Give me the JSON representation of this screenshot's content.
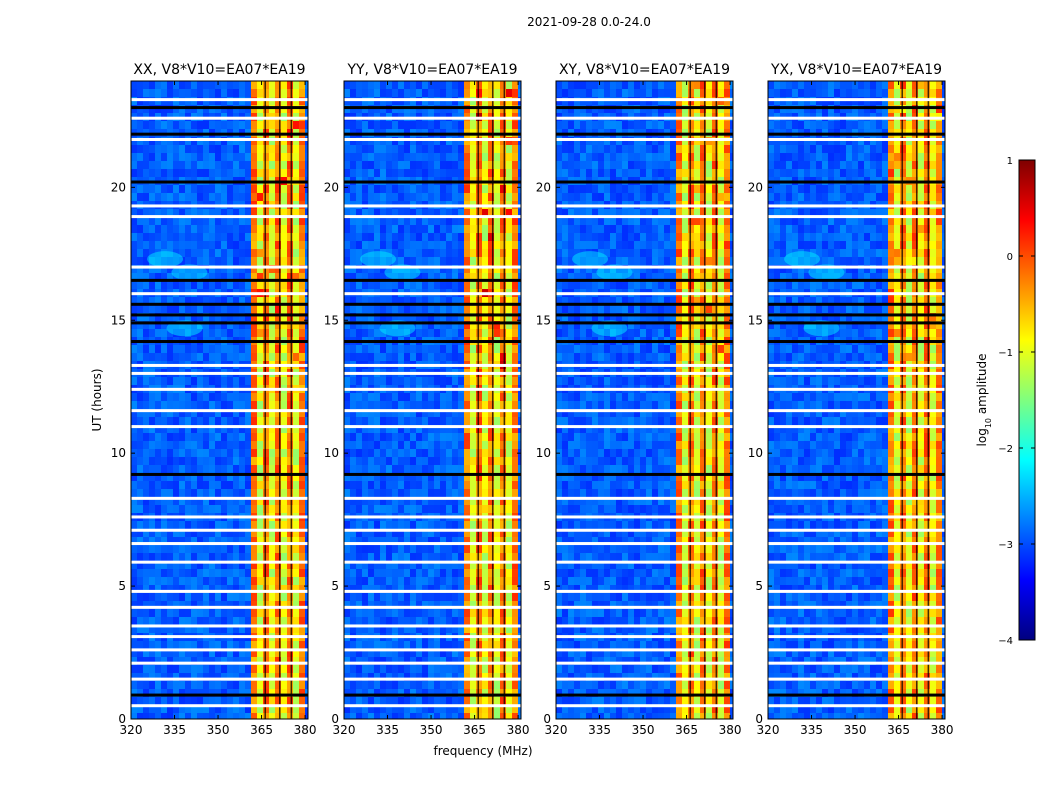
{
  "figure": {
    "suptitle": "2021-09-28 0.0-24.0",
    "xlabel": "frequency (MHz)",
    "ylabel": "UT (hours)"
  },
  "colors": {
    "jet": [
      "#00007f",
      "#0000ff",
      "#007fff",
      "#00ffff",
      "#7fff7f",
      "#ffff00",
      "#ff7f00",
      "#ff0000",
      "#7f0000"
    ],
    "flag_black": "#000000",
    "flag_white": "#ffffff"
  },
  "chart_data": {
    "type": "heatmap",
    "shared": {
      "xlim": [
        320,
        381
      ],
      "xticks": [
        320,
        335,
        350,
        365,
        380
      ],
      "ylim": [
        0,
        24
      ],
      "yticks": [
        0,
        5,
        10,
        15,
        20
      ],
      "rfi_band_mhz": [
        360.5,
        379.5
      ],
      "rfi_channels_mhz": [
        362,
        364,
        366,
        368,
        370,
        372,
        374,
        376,
        378
      ],
      "flag_rows_white_ut": [
        0.5,
        1.5,
        2.1,
        2.6,
        3.1,
        3.5,
        4.2,
        4.8,
        5.9,
        6.6,
        7.1,
        7.6,
        8.3,
        11.0,
        11.6,
        12.4,
        13.0,
        13.3,
        16.0,
        17.0,
        18.9,
        19.3,
        21.8,
        22.6,
        23.3
      ],
      "flag_rows_black_ut": [
        0.9,
        9.2,
        14.2,
        14.9,
        15.2,
        15.6,
        16.5,
        20.2,
        22.0,
        23.0
      ],
      "flag_cols_black_mhz": [
        366,
        371,
        375
      ]
    },
    "panels": [
      {
        "title": "XX, V8*V10=EA07*EA19",
        "seed": 11,
        "hot_level": 0.72
      },
      {
        "title": "YY, V8*V10=EA07*EA19",
        "seed": 23,
        "hot_level": 0.8
      },
      {
        "title": "XY, V8*V10=EA07*EA19",
        "seed": 37,
        "hot_level": 0.68
      },
      {
        "title": "YX, V8*V10=EA07*EA19",
        "seed": 51,
        "hot_level": 0.62
      }
    ],
    "colorbar": {
      "label_main": "log",
      "label_sub": "10",
      "label_rest": " amplitude",
      "range": [
        -4,
        1
      ],
      "ticks": [
        "1",
        "0",
        "−1",
        "−2",
        "−3",
        "−4"
      ]
    }
  }
}
